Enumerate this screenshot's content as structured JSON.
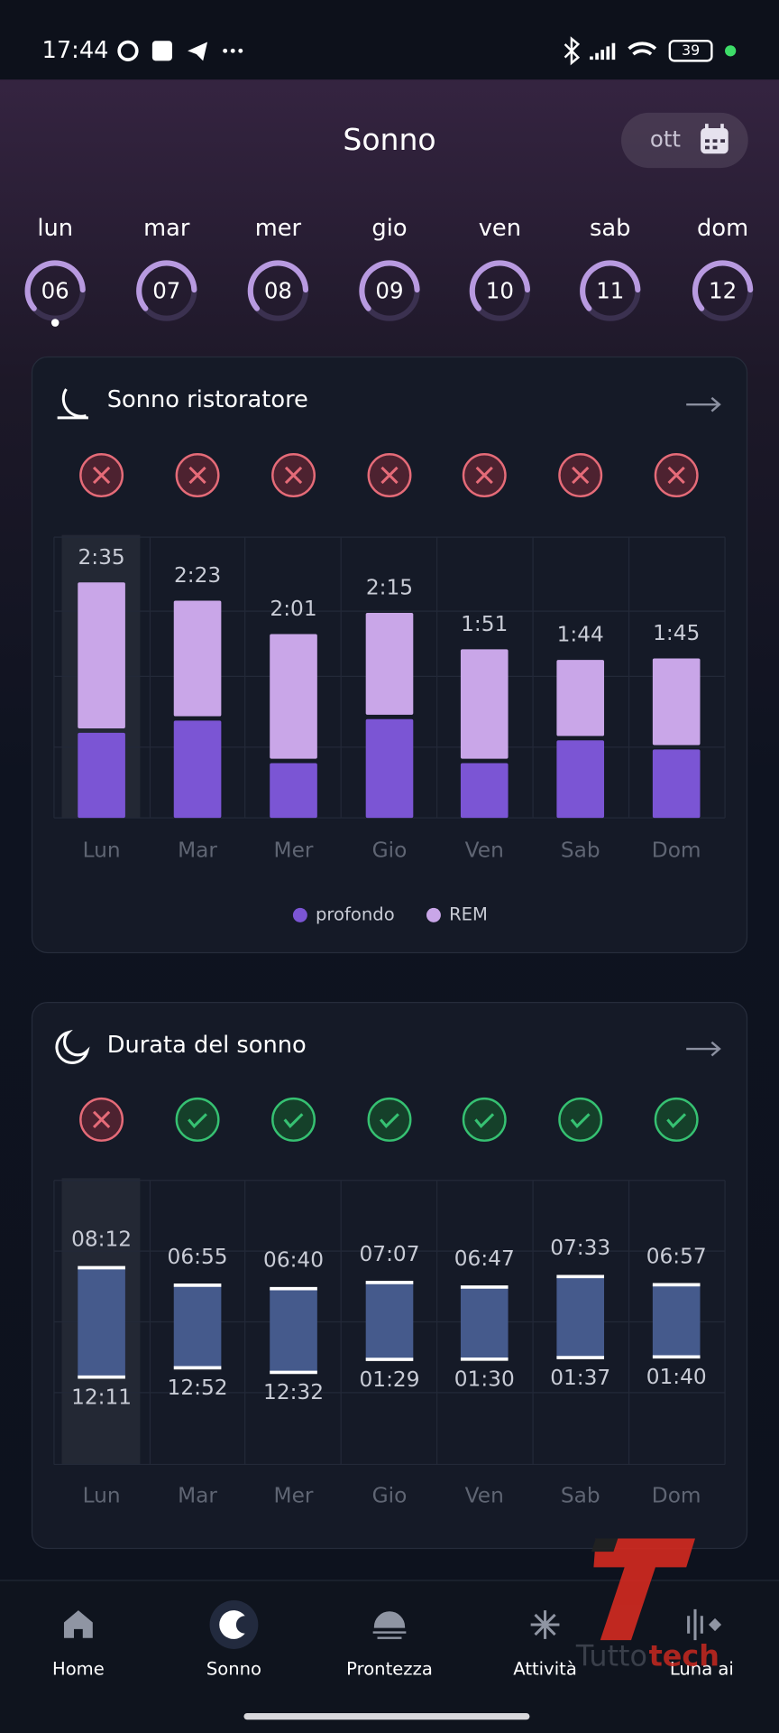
{
  "status_bar": {
    "time": "17:44",
    "battery": "39"
  },
  "header": {
    "title": "Sonno",
    "month": "ott"
  },
  "days": {
    "names": [
      "lun",
      "mar",
      "mer",
      "gio",
      "ven",
      "sab",
      "dom"
    ],
    "numbers": [
      "06",
      "07",
      "08",
      "09",
      "10",
      "11",
      "12"
    ]
  },
  "chart_data": [
    {
      "type": "stacked_bar",
      "title": "Sonno ristoratore",
      "status": [
        "bad",
        "bad",
        "bad",
        "bad",
        "bad",
        "bad",
        "bad"
      ],
      "categories": [
        "Lun",
        "Mar",
        "Mer",
        "Gio",
        "Ven",
        "Sab",
        "Dom"
      ],
      "series": [
        {
          "name": "profondo",
          "color": "#7b55d4",
          "values": [
            56,
            64,
            36,
            65,
            36,
            51,
            45
          ]
        },
        {
          "name": "REM",
          "color": "#c9a6e8",
          "values": [
            99,
            79,
            85,
            70,
            75,
            53,
            60
          ]
        }
      ],
      "total_labels": [
        "2:35",
        "2:23",
        "2:01",
        "2:15",
        "1:51",
        "1:44",
        "1:45"
      ]
    },
    {
      "type": "range_bar",
      "title": "Durata del sonno",
      "status": [
        "bad",
        "good",
        "good",
        "good",
        "good",
        "good",
        "good"
      ],
      "categories": [
        "Lun",
        "Mar",
        "Mer",
        "Gio",
        "Ven",
        "Sab",
        "Dom"
      ],
      "color": "#455a8c",
      "low": [
        0.183,
        0.867,
        0.533,
        1.483,
        1.5,
        1.617,
        1.667
      ],
      "low_labels": [
        "12:11",
        "12:52",
        "12:32",
        "01:29",
        "01:30",
        "01:37",
        "01:40"
      ],
      "high": [
        8.2,
        6.917,
        6.667,
        7.117,
        6.783,
        7.55,
        6.95
      ],
      "high_labels": [
        "08:12",
        "06:55",
        "06:40",
        "07:07",
        "06:47",
        "07:33",
        "06:57"
      ]
    }
  ],
  "nav": {
    "items": [
      "Home",
      "Sonno",
      "Prontezza",
      "Attività",
      "Luna ai"
    ]
  },
  "watermark": [
    "Tutto",
    "tech"
  ]
}
